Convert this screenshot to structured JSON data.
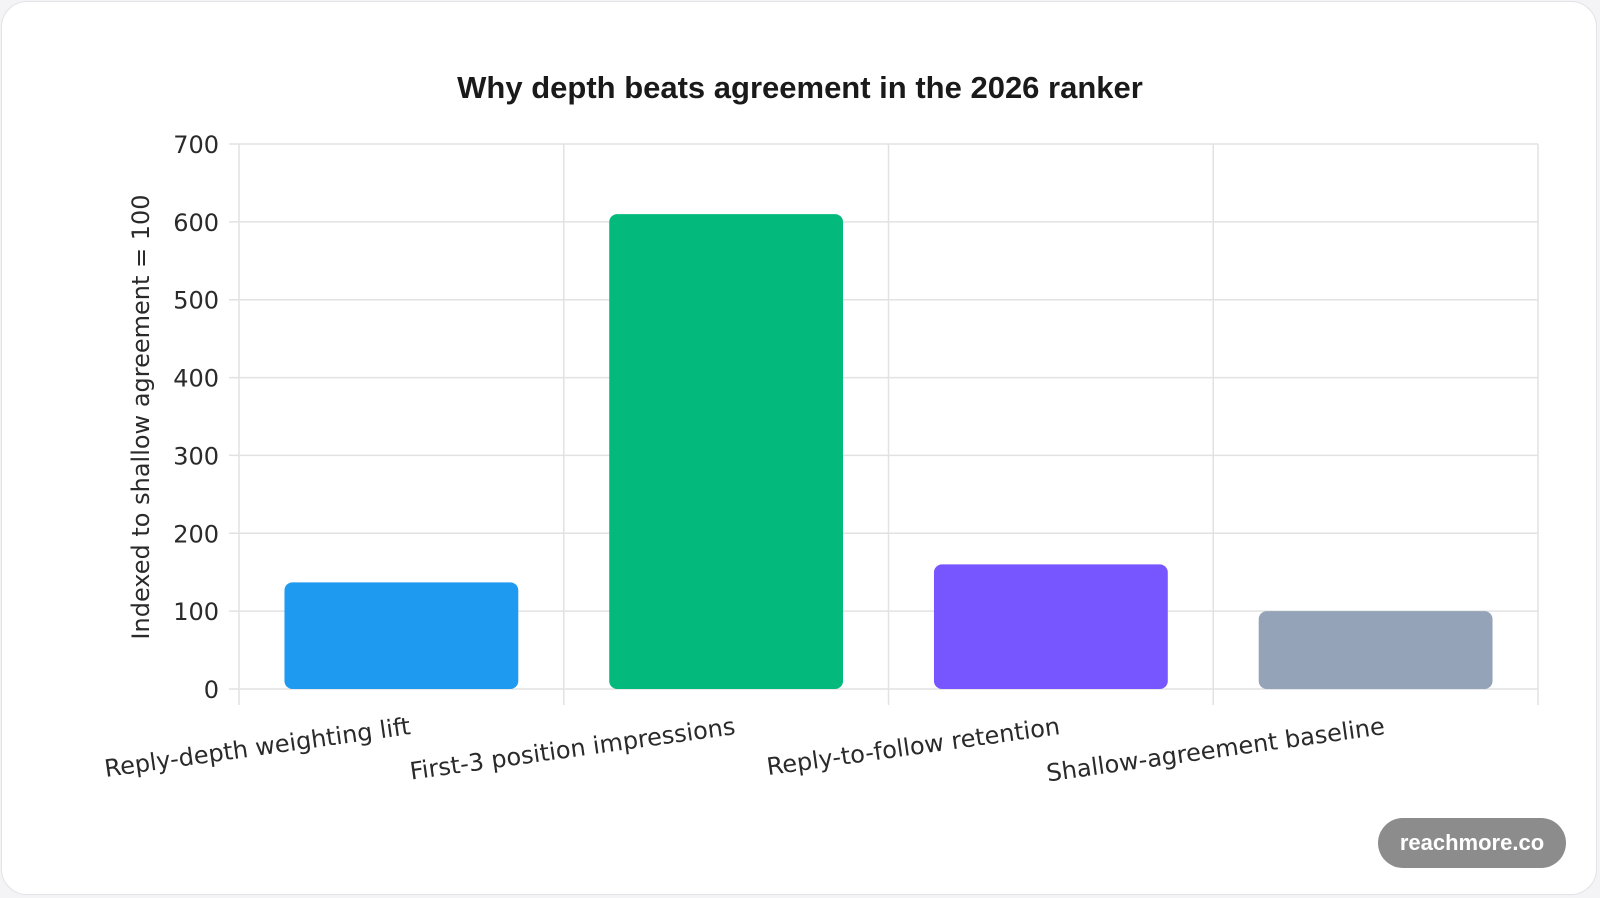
{
  "chart_data": {
    "type": "bar",
    "title": "Why depth beats agreement in the 2026 ranker",
    "ylabel": "Indexed to shallow agreement = 100",
    "xlabel": "",
    "categories": [
      "Reply-depth weighting lift",
      "First-3 position impressions",
      "Reply-to-follow retention",
      "Shallow-agreement baseline"
    ],
    "values": [
      137,
      610,
      160,
      100
    ],
    "colors": [
      "#1e9bf0",
      "#03ba7c",
      "#7856ff",
      "#94a3b8"
    ],
    "ylim": [
      0,
      700
    ],
    "yticks": [
      "0",
      "100",
      "200",
      "300",
      "400",
      "500",
      "600",
      "700"
    ],
    "grid": true,
    "legend": "none"
  },
  "watermark": "reachmore.co"
}
